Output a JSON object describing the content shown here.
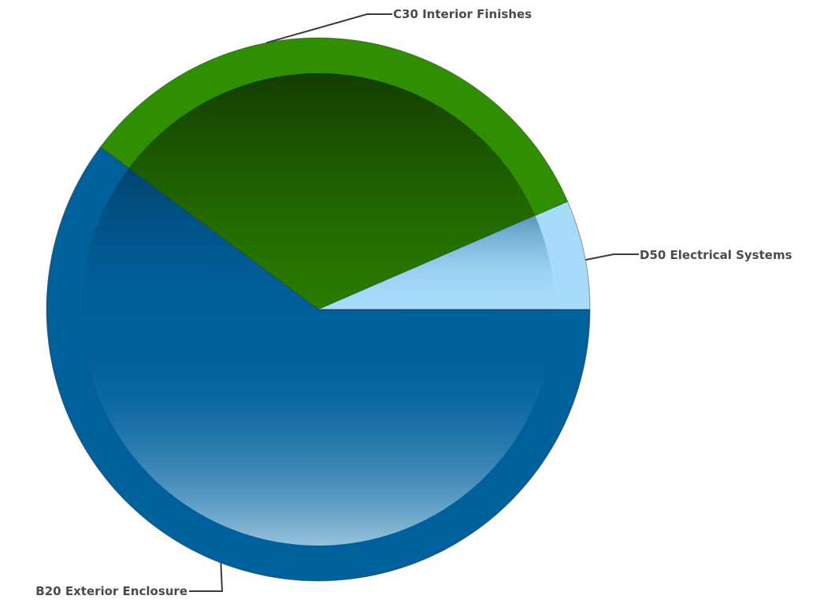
{
  "chart_data": {
    "type": "pie",
    "title": "",
    "slices": [
      {
        "label": "B20 Exterior Enclosure",
        "value": 60.2,
        "color": "#00609c"
      },
      {
        "label": "C30 Interior Finishes",
        "value": 33.3,
        "color": "#2f8f00"
      },
      {
        "label": "D50 Electrical Systems",
        "value": 6.5,
        "color": "#a6dcfa"
      }
    ],
    "legend": "none",
    "start_angle_deg": 0,
    "direction": "counterclockwise"
  }
}
